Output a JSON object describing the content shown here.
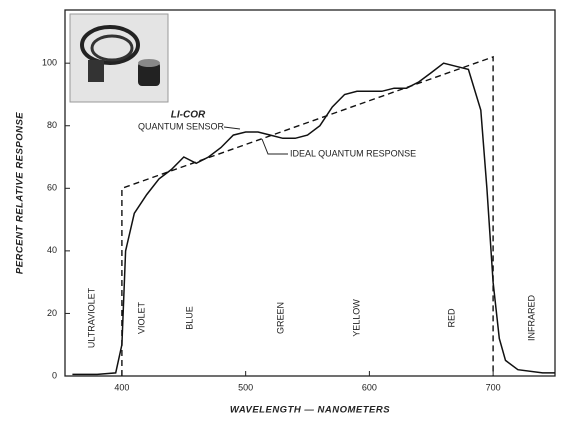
{
  "chart_data": {
    "type": "line",
    "x_label": "WAVELENGTH — NANOMETERS",
    "y_label": "PERCENT RELATIVE RESPONSE",
    "brand": "LI-COR",
    "xlim": [
      354,
      750
    ],
    "xticks": [
      400,
      500,
      600,
      700
    ],
    "ylim": [
      0,
      117
    ],
    "yticks": [
      0,
      20,
      40,
      60,
      80,
      100
    ],
    "bands": [
      "ULTRAVIOLET",
      "VIOLET",
      "BLUE",
      "GREEN",
      "YELLOW",
      "RED",
      "INFRARED"
    ],
    "series": [
      {
        "name": "QUANTUM SENSOR",
        "color": "#111111",
        "dashed": false,
        "x": [
          360,
          380,
          395,
          400,
          403,
          410,
          420,
          430,
          440,
          450,
          460,
          470,
          480,
          490,
          500,
          510,
          520,
          530,
          540,
          550,
          560,
          570,
          580,
          590,
          600,
          610,
          620,
          630,
          640,
          650,
          660,
          670,
          680,
          690,
          695,
          700,
          705,
          710,
          720,
          740,
          750
        ],
        "values": [
          0.5,
          0.5,
          1,
          10,
          40,
          52,
          58,
          63,
          66,
          70,
          68,
          70,
          73,
          77,
          78,
          78,
          77,
          76,
          76,
          77,
          80,
          86,
          90,
          91,
          91,
          91,
          92,
          92,
          94,
          97,
          100,
          99,
          98,
          85,
          60,
          30,
          12,
          5,
          2,
          1,
          1
        ]
      },
      {
        "name": "IDEAL QUANTUM RESPONSE",
        "color": "#111111",
        "dashed": true,
        "x": [
          400,
          400,
          700,
          700
        ],
        "values": [
          0,
          60,
          102,
          0
        ]
      }
    ]
  }
}
